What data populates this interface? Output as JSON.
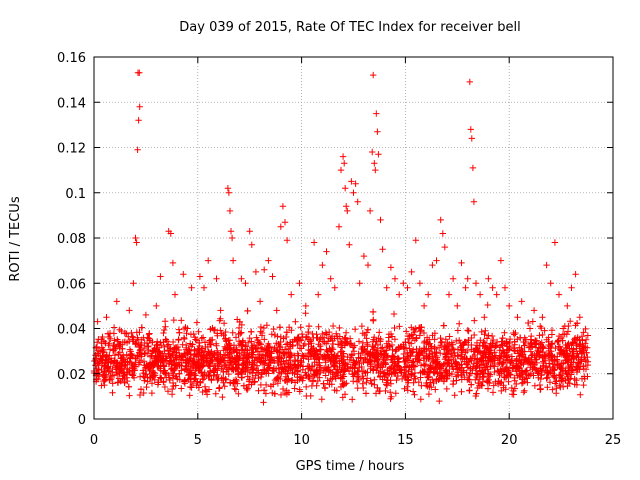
{
  "chart_data": {
    "type": "scatter",
    "title": "Day 039 of 2015, Rate Of TEC Index for receiver bell",
    "xlabel": "GPS time / hours",
    "ylabel": "ROTI / TECUs",
    "xlim": [
      0,
      25
    ],
    "ylim": [
      0,
      0.16
    ],
    "xticks": [
      0,
      5,
      10,
      15,
      20,
      25
    ],
    "xtick_labels": [
      "0",
      "5",
      "10",
      "15",
      "20",
      "25"
    ],
    "yticks": [
      0,
      0.02,
      0.04,
      0.06,
      0.08,
      0.1,
      0.12,
      0.14,
      0.16
    ],
    "ytick_labels": [
      "0",
      "0.02",
      "0.04",
      "0.06",
      "0.08",
      "0.1",
      "0.12",
      "0.14",
      "0.16"
    ],
    "grid": true,
    "marker": "+",
    "color": "#ff0000",
    "series": [
      {
        "name": "ROTI",
        "points": [
          [
            0.1,
            0.02
          ],
          [
            0.3,
            0.028
          ],
          [
            0.5,
            0.015
          ],
          [
            0.6,
            0.045
          ],
          [
            0.8,
            0.019
          ],
          [
            1.0,
            0.032
          ],
          [
            1.1,
            0.052
          ],
          [
            1.3,
            0.022
          ],
          [
            1.5,
            0.038
          ],
          [
            1.7,
            0.048
          ],
          [
            1.9,
            0.06
          ],
          [
            2.0,
            0.08
          ],
          [
            2.05,
            0.078
          ],
          [
            2.1,
            0.119
          ],
          [
            2.15,
            0.132
          ],
          [
            2.2,
            0.138
          ],
          [
            2.12,
            0.153
          ],
          [
            2.18,
            0.153
          ],
          [
            2.3,
            0.035
          ],
          [
            2.5,
            0.046
          ],
          [
            2.8,
            0.025
          ],
          [
            3.0,
            0.05
          ],
          [
            3.2,
            0.063
          ],
          [
            3.4,
            0.03
          ],
          [
            3.6,
            0.083
          ],
          [
            3.7,
            0.082
          ],
          [
            3.8,
            0.069
          ],
          [
            3.9,
            0.055
          ],
          [
            4.1,
            0.028
          ],
          [
            4.3,
            0.064
          ],
          [
            4.5,
            0.04
          ],
          [
            4.7,
            0.058
          ],
          [
            4.9,
            0.024
          ],
          [
            5.1,
            0.063
          ],
          [
            5.3,
            0.058
          ],
          [
            5.5,
            0.07
          ],
          [
            5.7,
            0.035
          ],
          [
            5.9,
            0.062
          ],
          [
            6.1,
            0.048
          ],
          [
            6.3,
            0.028
          ],
          [
            6.45,
            0.102
          ],
          [
            6.5,
            0.1
          ],
          [
            6.55,
            0.092
          ],
          [
            6.6,
            0.083
          ],
          [
            6.65,
            0.08
          ],
          [
            6.7,
            0.07
          ],
          [
            6.9,
            0.044
          ],
          [
            7.1,
            0.062
          ],
          [
            7.3,
            0.06
          ],
          [
            7.5,
            0.083
          ],
          [
            7.6,
            0.077
          ],
          [
            7.8,
            0.065
          ],
          [
            8.0,
            0.052
          ],
          [
            8.2,
            0.066
          ],
          [
            8.4,
            0.07
          ],
          [
            8.6,
            0.063
          ],
          [
            8.8,
            0.048
          ],
          [
            9.0,
            0.085
          ],
          [
            9.1,
            0.094
          ],
          [
            9.2,
            0.087
          ],
          [
            9.3,
            0.079
          ],
          [
            9.5,
            0.055
          ],
          [
            9.7,
            0.043
          ],
          [
            9.9,
            0.06
          ],
          [
            10.2,
            0.05
          ],
          [
            10.4,
            0.035
          ],
          [
            10.6,
            0.078
          ],
          [
            10.8,
            0.055
          ],
          [
            11.0,
            0.068
          ],
          [
            11.2,
            0.074
          ],
          [
            11.4,
            0.062
          ],
          [
            11.6,
            0.058
          ],
          [
            11.8,
            0.085
          ],
          [
            11.9,
            0.11
          ],
          [
            12.0,
            0.116
          ],
          [
            12.05,
            0.113
          ],
          [
            12.1,
            0.102
          ],
          [
            12.15,
            0.094
          ],
          [
            12.2,
            0.092
          ],
          [
            12.3,
            0.077
          ],
          [
            12.4,
            0.105
          ],
          [
            12.5,
            0.1
          ],
          [
            12.6,
            0.104
          ],
          [
            12.7,
            0.096
          ],
          [
            12.8,
            0.06
          ],
          [
            13.0,
            0.072
          ],
          [
            13.2,
            0.068
          ],
          [
            13.3,
            0.092
          ],
          [
            13.4,
            0.118
          ],
          [
            13.45,
            0.152
          ],
          [
            13.5,
            0.113
          ],
          [
            13.55,
            0.11
          ],
          [
            13.6,
            0.135
          ],
          [
            13.65,
            0.127
          ],
          [
            13.7,
            0.117
          ],
          [
            13.8,
            0.088
          ],
          [
            13.9,
            0.075
          ],
          [
            14.1,
            0.058
          ],
          [
            14.3,
            0.067
          ],
          [
            14.5,
            0.062
          ],
          [
            14.7,
            0.055
          ],
          [
            14.9,
            0.06
          ],
          [
            15.1,
            0.058
          ],
          [
            15.3,
            0.065
          ],
          [
            15.5,
            0.079
          ],
          [
            15.7,
            0.06
          ],
          [
            15.9,
            0.05
          ],
          [
            16.1,
            0.055
          ],
          [
            16.3,
            0.068
          ],
          [
            16.5,
            0.07
          ],
          [
            16.7,
            0.088
          ],
          [
            16.8,
            0.082
          ],
          [
            16.9,
            0.076
          ],
          [
            17.1,
            0.055
          ],
          [
            17.3,
            0.062
          ],
          [
            17.5,
            0.05
          ],
          [
            17.7,
            0.069
          ],
          [
            17.9,
            0.058
          ],
          [
            18.0,
            0.062
          ],
          [
            18.1,
            0.149
          ],
          [
            18.15,
            0.128
          ],
          [
            18.2,
            0.124
          ],
          [
            18.25,
            0.111
          ],
          [
            18.3,
            0.096
          ],
          [
            18.4,
            0.06
          ],
          [
            18.6,
            0.055
          ],
          [
            18.8,
            0.045
          ],
          [
            19.0,
            0.062
          ],
          [
            19.2,
            0.058
          ],
          [
            19.4,
            0.055
          ],
          [
            19.6,
            0.07
          ],
          [
            19.8,
            0.058
          ],
          [
            20.0,
            0.05
          ],
          [
            20.2,
            0.038
          ],
          [
            20.4,
            0.045
          ],
          [
            20.6,
            0.052
          ],
          [
            20.8,
            0.035
          ],
          [
            21.0,
            0.04
          ],
          [
            21.2,
            0.048
          ],
          [
            21.4,
            0.03
          ],
          [
            21.6,
            0.045
          ],
          [
            21.8,
            0.068
          ],
          [
            22.0,
            0.06
          ],
          [
            22.2,
            0.078
          ],
          [
            22.4,
            0.055
          ],
          [
            22.6,
            0.04
          ],
          [
            22.8,
            0.05
          ],
          [
            23.0,
            0.058
          ],
          [
            23.2,
            0.064
          ],
          [
            23.4,
            0.045
          ],
          [
            23.6,
            0.03
          ],
          [
            23.7,
            0.022
          ]
        ]
      }
    ],
    "background_band": {
      "description": "dense cloud of ROTI samples across the full day",
      "x_range": [
        0,
        23.8
      ],
      "y_range": [
        0.006,
        0.045
      ],
      "typical": 0.022
    }
  }
}
